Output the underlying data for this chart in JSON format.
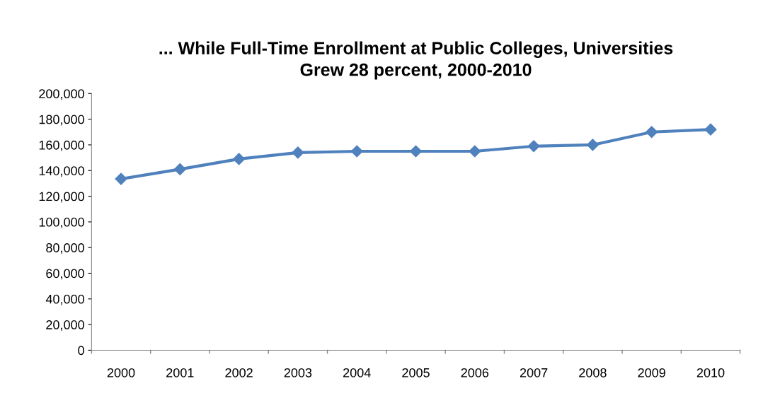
{
  "chart_data": {
    "type": "line",
    "title": "... While Full-Time Enrollment at Public Colleges, Universities\nGrew 28 percent, 2000-2010",
    "categories": [
      "2000",
      "2001",
      "2002",
      "2003",
      "2004",
      "2005",
      "2006",
      "2007",
      "2008",
      "2009",
      "2010"
    ],
    "series": [
      {
        "color": "#4f81bd",
        "values": [
          133500,
          141000,
          149000,
          154000,
          155000,
          155000,
          155000,
          159000,
          160000,
          170000,
          172000
        ]
      }
    ],
    "ylim": [
      0,
      200000
    ],
    "yticks": [
      {
        "value": 0,
        "label": "0"
      },
      {
        "value": 20000,
        "label": "20,000"
      },
      {
        "value": 40000,
        "label": "40,000"
      },
      {
        "value": 60000,
        "label": "60,000"
      },
      {
        "value": 80000,
        "label": "80,000"
      },
      {
        "value": 100000,
        "label": "100,000"
      },
      {
        "value": 120000,
        "label": "120,000"
      },
      {
        "value": 140000,
        "label": "140,000"
      },
      {
        "value": 160000,
        "label": "160,000"
      },
      {
        "value": 180000,
        "label": "180,000"
      },
      {
        "value": 200000,
        "label": "200,000"
      }
    ],
    "marker": "diamond",
    "line_style": "solid",
    "grid": false
  }
}
